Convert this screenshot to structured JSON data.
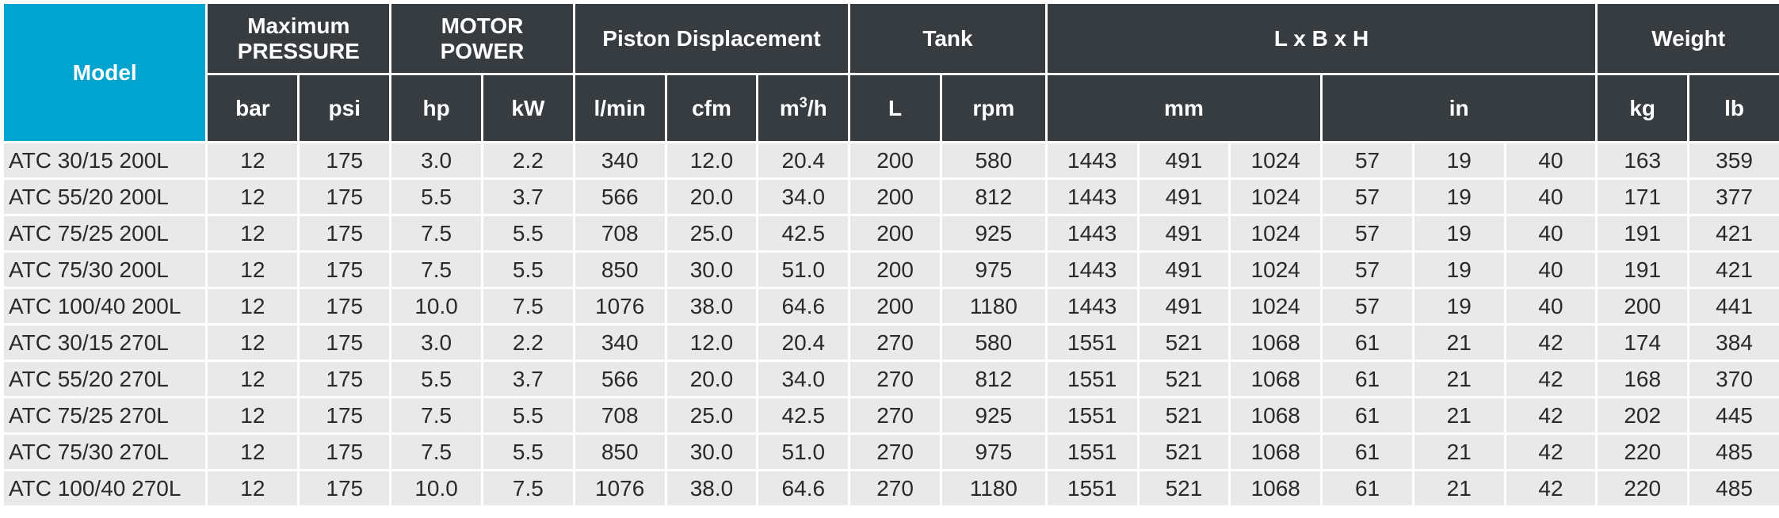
{
  "headers": {
    "model": "Model",
    "max_pressure": [
      "Maximum",
      "PRESSURE"
    ],
    "motor_power": [
      "MOTOR",
      "POWER"
    ],
    "piston_displacement": "Piston Displacement",
    "tank": "Tank",
    "dimensions": "L x B x H",
    "weight": "Weight"
  },
  "units": {
    "bar": "bar",
    "psi": "psi",
    "hp": "hp",
    "kw": "kW",
    "lmin": "l/min",
    "cfm": "cfm",
    "m3h_base": "m",
    "m3h_sup": "3",
    "m3h_tail": "/h",
    "tank_l": "L",
    "rpm": "rpm",
    "mm": "mm",
    "in": "in",
    "kg": "kg",
    "lb": "lb"
  },
  "rows": [
    [
      "ATC 30/15 200L",
      "12",
      "175",
      "3.0",
      "2.2",
      "340",
      "12.0",
      "20.4",
      "200",
      "580",
      "1443",
      "491",
      "1024",
      "57",
      "19",
      "40",
      "163",
      "359"
    ],
    [
      "ATC 55/20 200L",
      "12",
      "175",
      "5.5",
      "3.7",
      "566",
      "20.0",
      "34.0",
      "200",
      "812",
      "1443",
      "491",
      "1024",
      "57",
      "19",
      "40",
      "171",
      "377"
    ],
    [
      "ATC 75/25 200L",
      "12",
      "175",
      "7.5",
      "5.5",
      "708",
      "25.0",
      "42.5",
      "200",
      "925",
      "1443",
      "491",
      "1024",
      "57",
      "19",
      "40",
      "191",
      "421"
    ],
    [
      "ATC 75/30 200L",
      "12",
      "175",
      "7.5",
      "5.5",
      "850",
      "30.0",
      "51.0",
      "200",
      "975",
      "1443",
      "491",
      "1024",
      "57",
      "19",
      "40",
      "191",
      "421"
    ],
    [
      "ATC 100/40 200L",
      "12",
      "175",
      "10.0",
      "7.5",
      "1076",
      "38.0",
      "64.6",
      "200",
      "1180",
      "1443",
      "491",
      "1024",
      "57",
      "19",
      "40",
      "200",
      "441"
    ],
    [
      "ATC 30/15 270L",
      "12",
      "175",
      "3.0",
      "2.2",
      "340",
      "12.0",
      "20.4",
      "270",
      "580",
      "1551",
      "521",
      "1068",
      "61",
      "21",
      "42",
      "174",
      "384"
    ],
    [
      "ATC 55/20 270L",
      "12",
      "175",
      "5.5",
      "3.7",
      "566",
      "20.0",
      "34.0",
      "270",
      "812",
      "1551",
      "521",
      "1068",
      "61",
      "21",
      "42",
      "168",
      "370"
    ],
    [
      "ATC 75/25 270L",
      "12",
      "175",
      "7.5",
      "5.5",
      "708",
      "25.0",
      "42.5",
      "270",
      "925",
      "1551",
      "521",
      "1068",
      "61",
      "21",
      "42",
      "202",
      "445"
    ],
    [
      "ATC 75/30 270L",
      "12",
      "175",
      "7.5",
      "5.5",
      "850",
      "30.0",
      "51.0",
      "270",
      "975",
      "1551",
      "521",
      "1068",
      "61",
      "21",
      "42",
      "220",
      "485"
    ],
    [
      "ATC 100/40 270L",
      "12",
      "175",
      "10.0",
      "7.5",
      "1076",
      "38.0",
      "64.6",
      "270",
      "1180",
      "1551",
      "521",
      "1068",
      "61",
      "21",
      "42",
      "220",
      "485"
    ]
  ]
}
